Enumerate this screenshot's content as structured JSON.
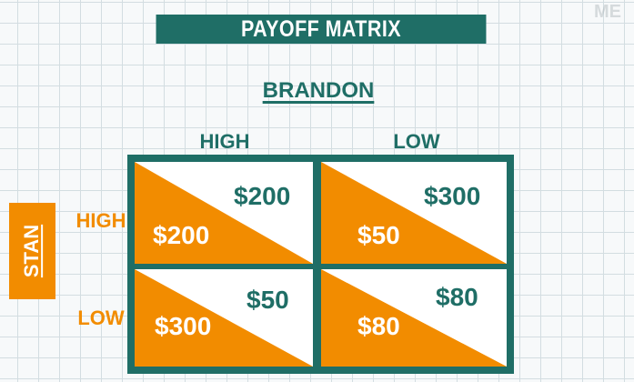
{
  "title": "PAYOFF MATRIX",
  "column_player": "BRANDON",
  "row_player": "STAN",
  "columns": [
    "HIGH",
    "LOW"
  ],
  "rows": [
    "HIGH",
    "LOW"
  ],
  "cells": [
    [
      {
        "column_payoff": "$200",
        "row_payoff": "$200"
      },
      {
        "column_payoff": "$300",
        "row_payoff": "$50"
      }
    ],
    [
      {
        "column_payoff": "$50",
        "row_payoff": "$300"
      },
      {
        "column_payoff": "$80",
        "row_payoff": "$80"
      }
    ]
  ],
  "watermark": "ME",
  "colors": {
    "teal": "#1f6e66",
    "orange": "#f28c00",
    "background": "#f7f9fa"
  }
}
